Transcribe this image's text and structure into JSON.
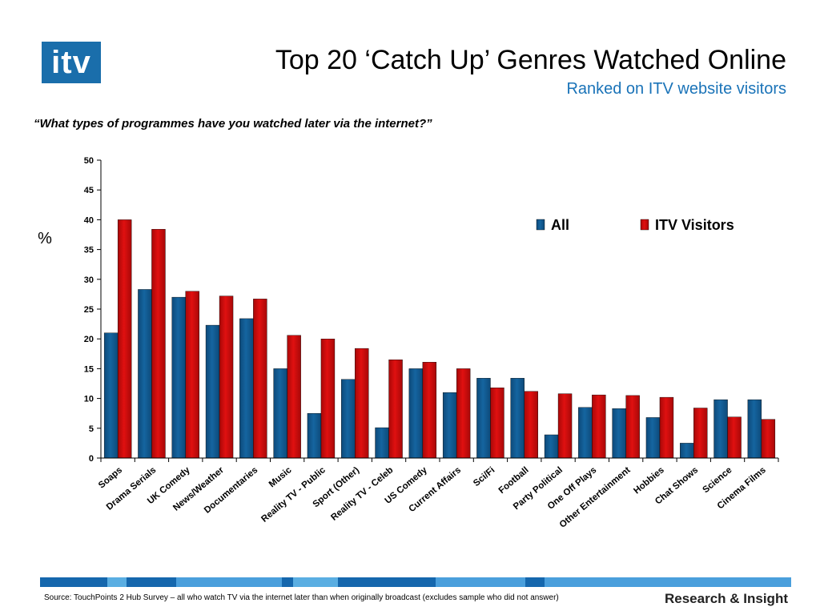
{
  "header": {
    "logo_text": "itv",
    "title": "Top 20 ‘Catch Up’ Genres Watched Online",
    "subtitle": "Ranked on ITV website visitors",
    "question": "“What types of programmes have you watched later via the internet?”"
  },
  "footer": {
    "source": "Source: TouchPoints 2 Hub Survey  – all who watch TV via the internet later than when originally broadcast (excludes sample who did not answer)",
    "brand": "Research & Insight"
  },
  "colors": {
    "logo_bg": "#1a6eab",
    "subtitle": "#1a73b8",
    "series_all": "#1565a0",
    "series_itv": "#e01010"
  },
  "chart_data": {
    "type": "bar",
    "ylabel": "%",
    "ylim": [
      0,
      50
    ],
    "yticks": [
      0,
      5,
      10,
      15,
      20,
      25,
      30,
      35,
      40,
      45,
      50
    ],
    "legend_position": "top-right",
    "categories": [
      "Soaps",
      "Drama Serials",
      "UK Comedy",
      "News/Weather",
      "Documentaries",
      "Music",
      "Reality TV - Public",
      "Sport (Other)",
      "Reality TV - Celeb",
      "US Comedy",
      "Current Affairs",
      "Sci/Fi",
      "Football",
      "Party Political",
      "One Off Plays",
      "Other Entertainment",
      "Hobbies",
      "Chat Shows",
      "Science",
      "Cinema Films"
    ],
    "series": [
      {
        "name": "All",
        "color": "#1565a0",
        "values": [
          21,
          28.3,
          27,
          22.3,
          23.4,
          15,
          7.5,
          13.2,
          5.1,
          15,
          11,
          13.4,
          13.4,
          3.9,
          8.5,
          8.3,
          6.8,
          2.5,
          9.8,
          9.8
        ]
      },
      {
        "name": "ITV Visitors",
        "color": "#e01010",
        "values": [
          40,
          38.4,
          28,
          27.2,
          26.7,
          20.6,
          20,
          18.4,
          16.5,
          16.1,
          15,
          11.8,
          11.2,
          10.8,
          10.6,
          10.5,
          10.2,
          8.4,
          6.9,
          6.5
        ]
      }
    ]
  }
}
